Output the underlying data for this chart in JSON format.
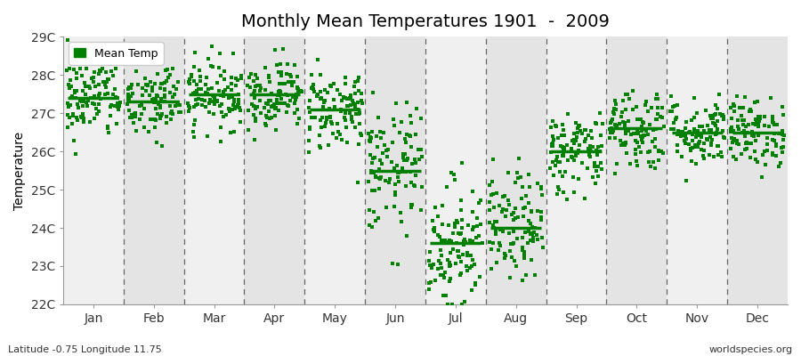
{
  "title": "Monthly Mean Temperatures 1901  -  2009",
  "ylabel": "Temperature",
  "xlabel_labels": [
    "Jan",
    "Feb",
    "Mar",
    "Apr",
    "May",
    "Jun",
    "Jul",
    "Aug",
    "Sep",
    "Oct",
    "Nov",
    "Dec"
  ],
  "subtitle_left": "Latitude -0.75 Longitude 11.75",
  "subtitle_right": "worldspecies.org",
  "legend_label": "Mean Temp",
  "ylim": [
    22.0,
    29.0
  ],
  "ytick_labels": [
    "22C",
    "23C",
    "24C",
    "25C",
    "26C",
    "27C",
    "28C",
    "29C"
  ],
  "ytick_values": [
    22,
    23,
    24,
    25,
    26,
    27,
    28,
    29
  ],
  "dot_color": "#008000",
  "dot_size": 5,
  "bg_color": "#f0f0f0",
  "band_color_a": "#f0f0f0",
  "band_color_b": "#e4e4e4",
  "monthly_means": [
    27.4,
    27.3,
    27.5,
    27.5,
    27.1,
    25.5,
    23.6,
    24.0,
    26.0,
    26.6,
    26.5,
    26.5
  ],
  "monthly_stds": [
    0.55,
    0.55,
    0.45,
    0.45,
    0.55,
    0.85,
    0.85,
    0.7,
    0.55,
    0.55,
    0.45,
    0.45
  ],
  "n_years": 109,
  "seed": 42
}
